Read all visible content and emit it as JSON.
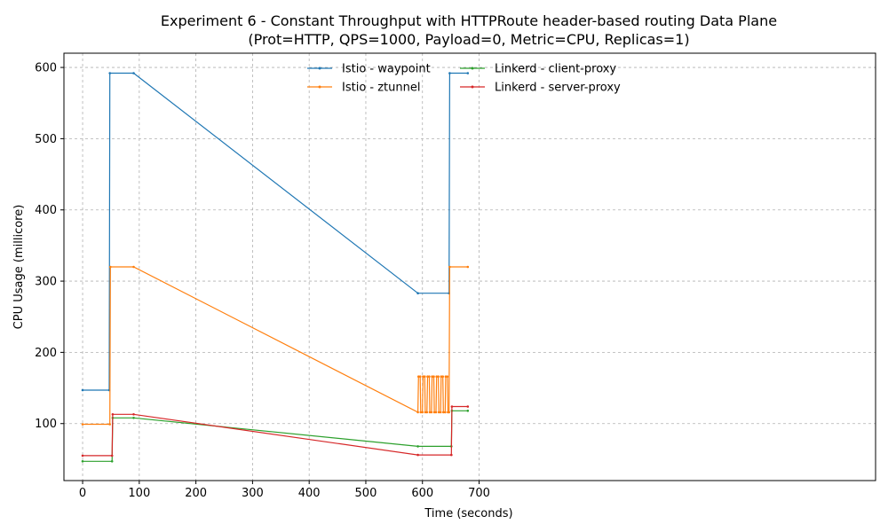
{
  "chart_data": {
    "type": "line",
    "title": "Experiment 6 - Constant Throughput with HTTPRoute header-based routing Data Plane",
    "subtitle": "(Prot=HTTP, QPS=1000, Payload=0, Metric=CPU, Replicas=1)",
    "xlabel": "Time (seconds)",
    "ylabel": "CPU Usage (millicore)",
    "xlim": [
      -33,
      1400
    ],
    "ylim": [
      20,
      620
    ],
    "xticks": [
      0,
      100,
      200,
      300,
      400,
      500,
      600,
      700
    ],
    "yticks": [
      100,
      200,
      300,
      400,
      500,
      600
    ],
    "grid": true,
    "legend_placement": "top-center",
    "series": [
      {
        "name": "Istio - waypoint",
        "color": "#1f77b4",
        "x": [
          0,
          47,
          48,
          90,
          592,
          647,
          648,
          680
        ],
        "y": [
          147,
          147,
          592,
          592,
          283,
          283,
          592,
          592
        ]
      },
      {
        "name": "Istio - ztunnel",
        "color": "#ff7f0e",
        "x": [
          0,
          48,
          49,
          90,
          592,
          593,
          596,
          597,
          600,
          601,
          604,
          605,
          608,
          609,
          612,
          613,
          616,
          617,
          620,
          621,
          624,
          625,
          628,
          629,
          632,
          633,
          636,
          637,
          640,
          641,
          644,
          645,
          647,
          648,
          680
        ],
        "y": [
          99,
          99,
          320,
          320,
          116,
          166,
          166,
          116,
          116,
          166,
          166,
          116,
          116,
          166,
          166,
          116,
          116,
          166,
          166,
          116,
          116,
          166,
          166,
          116,
          116,
          166,
          166,
          116,
          116,
          166,
          166,
          116,
          116,
          320,
          320
        ]
      },
      {
        "name": "Linkerd - client-proxy",
        "color": "#2ca02c",
        "x": [
          0,
          52,
          53,
          90,
          592,
          651,
          652,
          680
        ],
        "y": [
          47,
          47,
          108,
          108,
          68,
          68,
          118,
          118
        ]
      },
      {
        "name": "Linkerd - server-proxy",
        "color": "#d62728",
        "x": [
          0,
          52,
          53,
          90,
          592,
          651,
          652,
          680
        ],
        "y": [
          55,
          55,
          113,
          113,
          56,
          56,
          124,
          124
        ]
      }
    ]
  }
}
